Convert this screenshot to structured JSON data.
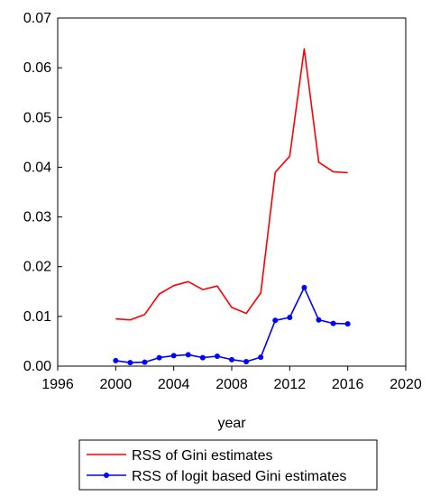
{
  "chart_data": {
    "type": "line",
    "xlabel": "year",
    "ylabel": "",
    "xlim": [
      1996,
      2020
    ],
    "ylim": [
      0,
      0.07
    ],
    "x_ticks": [
      "1996",
      "2000",
      "2004",
      "2008",
      "2012",
      "2016",
      "2020"
    ],
    "y_ticks": [
      "0.00",
      "0.01",
      "0.02",
      "0.03",
      "0.04",
      "0.05",
      "0.06",
      "0.07"
    ],
    "grid": false,
    "legend_position": "bottom",
    "x": [
      2000,
      2001,
      2002,
      2003,
      2004,
      2005,
      2006,
      2007,
      2008,
      2009,
      2010,
      2011,
      2012,
      2013,
      2014,
      2015,
      2016
    ],
    "series": [
      {
        "name": "RSS of Gini estimates",
        "color": "#ff0000",
        "markers": false,
        "values": [
          0.0095,
          0.0093,
          0.0104,
          0.0145,
          0.0162,
          0.017,
          0.0154,
          0.0161,
          0.0118,
          0.0106,
          0.0147,
          0.039,
          0.0422,
          0.0638,
          0.041,
          0.0391,
          0.0389
        ]
      },
      {
        "name": "RSS of logit based Gini estimates",
        "color": "#0000ff",
        "markers": true,
        "values": [
          0.0011,
          0.0007,
          0.0008,
          0.0017,
          0.0021,
          0.0023,
          0.0017,
          0.002,
          0.0013,
          0.0009,
          0.0018,
          0.0092,
          0.0098,
          0.0158,
          0.0093,
          0.0086,
          0.0085
        ]
      }
    ]
  }
}
